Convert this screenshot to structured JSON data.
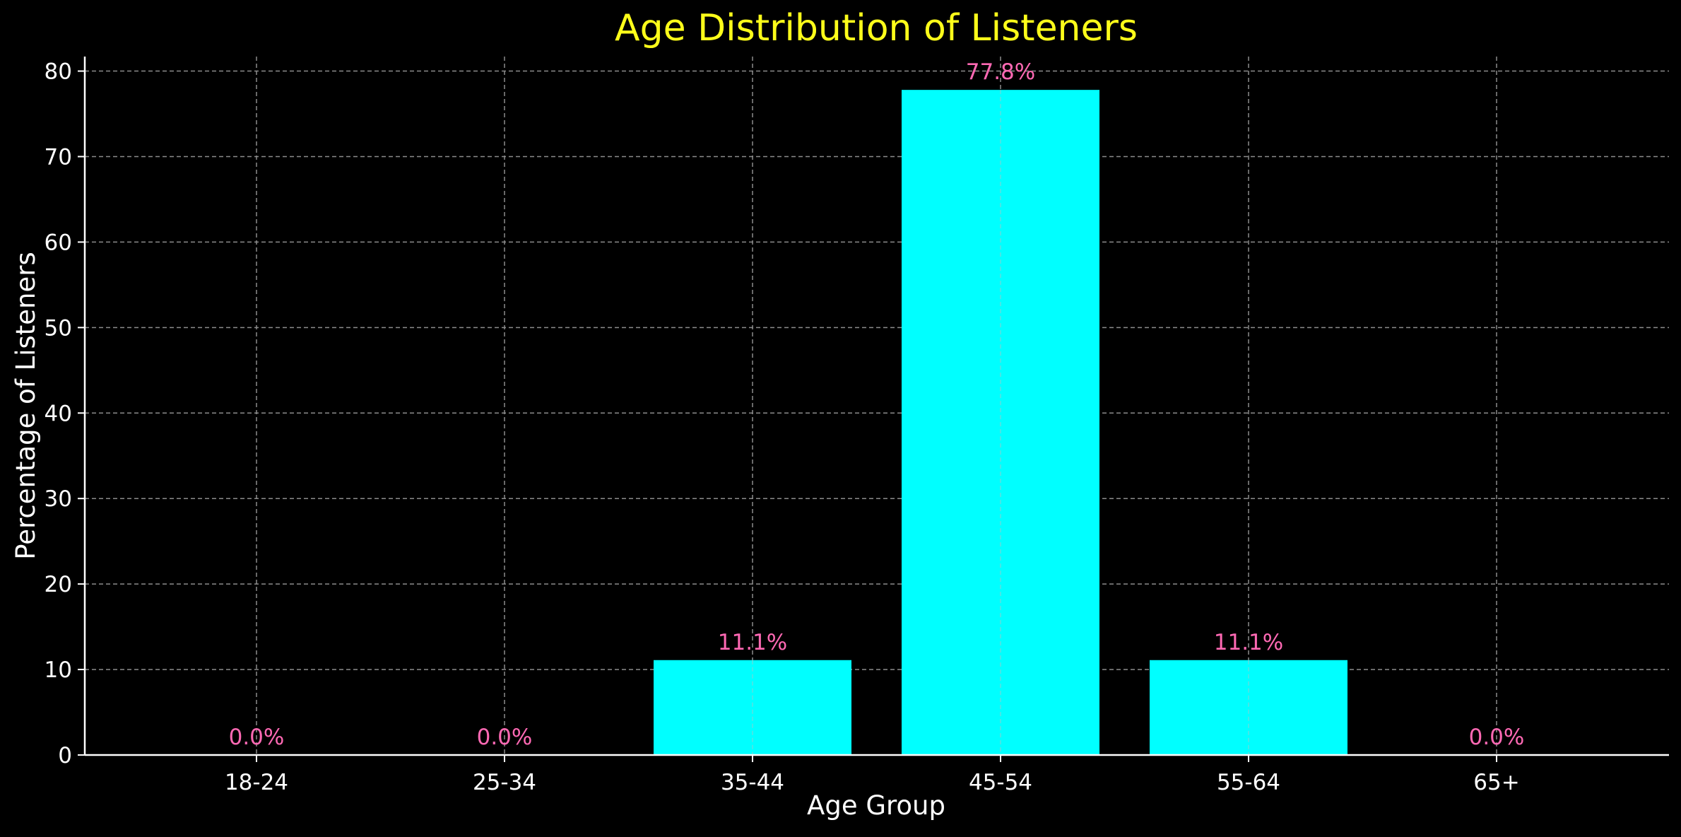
{
  "chart_data": {
    "type": "bar",
    "title": "Age Distribution of Listeners",
    "xlabel": "Age Group",
    "ylabel": "Percentage of Listeners",
    "categories": [
      "18-24",
      "25-34",
      "35-44",
      "45-54",
      "55-64",
      "65+"
    ],
    "values": [
      0.0,
      0.0,
      11.1,
      77.8,
      11.1,
      0.0
    ],
    "value_labels": [
      "0.0%",
      "0.0%",
      "11.1%",
      "77.8%",
      "11.1%",
      "0.0%"
    ],
    "ylim": [
      0,
      81.7
    ],
    "yticks": [
      0,
      10,
      20,
      30,
      40,
      50,
      60,
      70,
      80
    ],
    "grid": true,
    "legend": "none"
  },
  "colors": {
    "background": "#000000",
    "bar": "#00ffff",
    "title": "#ffff1a",
    "value_label": "#ff69b4",
    "text": "#ffffff",
    "grid": "#8c8c8c",
    "axis": "#ffffff"
  }
}
